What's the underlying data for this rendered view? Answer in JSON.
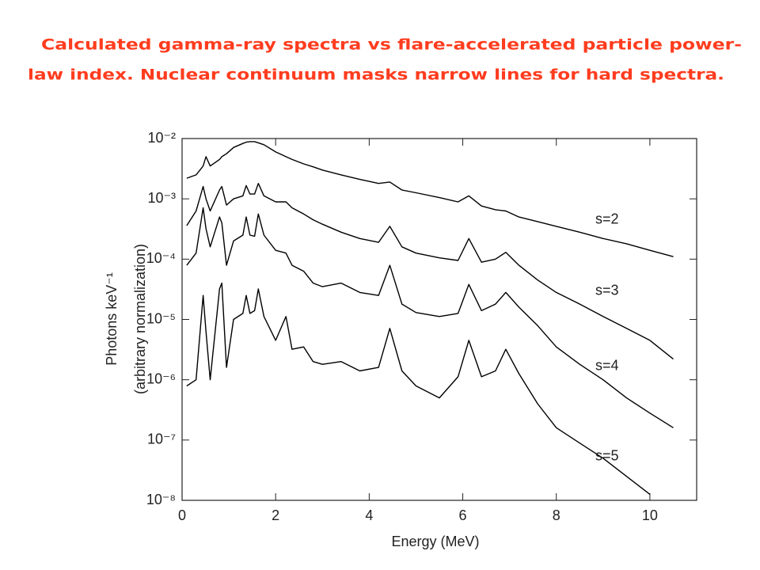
{
  "chart_data": {
    "type": "line",
    "title": [
      "Calculated gamma-ray spectra vs flare-accelerated particle power-",
      "law index.  Nuclear continuum masks narrow lines for hard spectra."
    ],
    "xlabel": "Energy (MeV)",
    "ylabel": [
      "Photons keV⁻¹",
      "(arbitrary normalization)"
    ],
    "x": [
      0.1,
      0.3,
      0.45,
      0.511,
      0.6,
      0.8,
      0.85,
      0.95,
      1.1,
      1.3,
      1.37,
      1.45,
      1.55,
      1.63,
      1.75,
      2.0,
      2.22,
      2.35,
      2.6,
      2.8,
      3.0,
      3.4,
      3.8,
      4.2,
      4.44,
      4.7,
      5.0,
      5.5,
      5.9,
      6.13,
      6.4,
      6.7,
      6.92,
      7.2,
      7.6,
      8.0,
      8.5,
      9.0,
      9.5,
      10.0,
      10.5
    ],
    "series": [
      {
        "name": "s=2",
        "color": "#000000",
        "values": [
          0.0022,
          0.0025,
          0.0035,
          0.005,
          0.0035,
          0.0045,
          0.005,
          0.0056,
          0.0071,
          0.0083,
          0.0087,
          0.0089,
          0.0089,
          0.0085,
          0.0079,
          0.006,
          0.005,
          0.0045,
          0.0038,
          0.0034,
          0.003,
          0.0025,
          0.0021,
          0.0018,
          0.0019,
          0.0014,
          0.00126,
          0.00105,
          0.00089,
          0.00112,
          0.00076,
          0.00066,
          0.00063,
          0.0005,
          0.00042,
          0.00035,
          0.00028,
          0.00022,
          0.00018,
          0.00014,
          0.00011
        ]
      },
      {
        "name": "s=3",
        "color": "#000000",
        "values": [
          0.00036,
          0.00063,
          0.0016,
          0.001,
          0.00063,
          0.0014,
          0.0016,
          0.00079,
          0.001,
          0.00112,
          0.00166,
          0.0012,
          0.0012,
          0.0018,
          0.00112,
          0.00089,
          0.00089,
          0.00071,
          0.00056,
          0.00045,
          0.00038,
          0.00028,
          0.00022,
          0.00019,
          0.00035,
          0.00016,
          0.000126,
          0.000105,
          9.5e-05,
          0.00022,
          8.9e-05,
          0.0001,
          0.00013,
          7.9e-05,
          4.5e-05,
          2.8e-05,
          1.8e-05,
          1.12e-05,
          7.1e-06,
          4.5e-06,
          2.2e-06
        ]
      },
      {
        "name": "s=4",
        "color": "#000000",
        "values": [
          7.9e-05,
          0.000126,
          0.00071,
          0.00032,
          0.00016,
          0.0005,
          0.0004,
          7.9e-05,
          0.0002,
          0.00025,
          0.0005,
          0.00025,
          0.00024,
          0.00056,
          0.00025,
          0.00014,
          0.000126,
          7.9e-05,
          6.3e-05,
          4e-05,
          3.5e-05,
          4e-05,
          2.8e-05,
          2.5e-05,
          7.9e-05,
          1.8e-05,
          1.3e-05,
          1.12e-05,
          1.26e-05,
          3.8e-05,
          1.4e-05,
          1.8e-05,
          2.8e-05,
          1.6e-05,
          7.9e-06,
          3.5e-06,
          1.8e-06,
          1e-06,
          5e-07,
          2.8e-07,
          1.6e-07
        ]
      },
      {
        "name": "s=5",
        "color": "#000000",
        "values": [
          7.9e-07,
          1e-06,
          2.5e-05,
          6.3e-06,
          1e-06,
          3.2e-05,
          4e-05,
          1.6e-06,
          1e-05,
          1.26e-05,
          2.5e-05,
          1.26e-05,
          1.4e-05,
          3.2e-05,
          1.12e-05,
          4.5e-06,
          1.12e-05,
          3.2e-06,
          3.5e-06,
          2e-06,
          1.8e-06,
          2e-06,
          1.4e-06,
          1.6e-06,
          7.1e-06,
          1.4e-06,
          7.9e-07,
          5e-07,
          1.12e-06,
          4.5e-06,
          1.12e-06,
          1.4e-06,
          3.2e-06,
          1.26e-06,
          4e-07,
          1.6e-07,
          8.9e-08,
          5e-08,
          2.5e-08,
          1.26e-08,
          null
        ]
      }
    ],
    "xlim": [
      0,
      11
    ],
    "xticks": [
      0,
      2,
      4,
      6,
      8,
      10
    ],
    "ylim": [
      1e-08,
      0.01
    ],
    "log_y": true,
    "yticks": [
      {
        "value": 1e-08,
        "label": "10⁻⁸"
      },
      {
        "value": 1e-07,
        "label": "10⁻⁷"
      },
      {
        "value": 1e-06,
        "label": "10⁻⁶"
      },
      {
        "value": 1e-05,
        "label": "10⁻⁵"
      },
      {
        "value": 0.0001,
        "label": "10⁻⁴"
      },
      {
        "value": 0.001,
        "label": "10⁻³"
      },
      {
        "value": 0.01,
        "label": "10⁻²"
      }
    ],
    "grid": false
  }
}
